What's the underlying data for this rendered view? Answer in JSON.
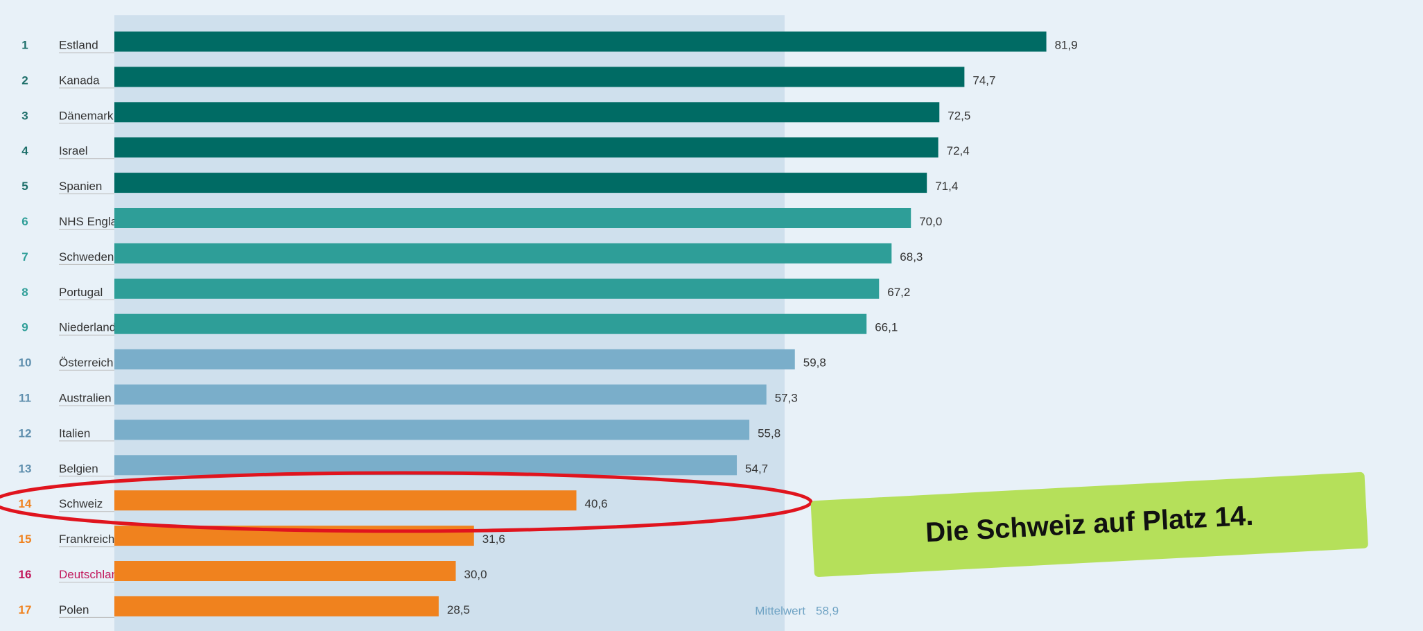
{
  "chart_data": {
    "type": "bar",
    "orientation": "horizontal",
    "ranks": [
      1,
      2,
      3,
      4,
      5,
      6,
      7,
      8,
      9,
      10,
      11,
      12,
      13,
      14,
      15,
      16,
      17
    ],
    "categories": [
      "Estland",
      "Kanada",
      "Dänemark",
      "Israel",
      "Spanien",
      "NHS England",
      "Schweden",
      "Portugal",
      "Niederlande",
      "Österreich",
      "Australien",
      "Italien",
      "Belgien",
      "Schweiz",
      "Frankreich",
      "Deutschland",
      "Polen"
    ],
    "values": [
      81.9,
      74.7,
      72.5,
      72.4,
      71.4,
      70.0,
      68.3,
      67.2,
      66.1,
      59.8,
      57.3,
      55.8,
      54.7,
      40.6,
      31.6,
      30.0,
      28.5
    ],
    "value_labels": [
      "81,9",
      "74,7",
      "72,5",
      "72,4",
      "71,4",
      "70,0",
      "68,3",
      "67,2",
      "66,1",
      "59,8",
      "57,3",
      "55,8",
      "54,7",
      "40,6",
      "31,6",
      "30,0",
      "28,5"
    ],
    "colors": [
      "#006b64",
      "#006b64",
      "#006b64",
      "#006b64",
      "#006b64",
      "#2e9e98",
      "#2e9e98",
      "#2e9e98",
      "#2e9e98",
      "#7aaeca",
      "#7aaeca",
      "#7aaeca",
      "#7aaeca",
      "#f0821e",
      "#f0821e",
      "#f0821e",
      "#f0821e"
    ],
    "rank_colors": [
      "#1d6f6a",
      "#1d6f6a",
      "#1d6f6a",
      "#1d6f6a",
      "#1d6f6a",
      "#2e9e98",
      "#2e9e98",
      "#2e9e98",
      "#2e9e98",
      "#5f8fae",
      "#5f8fae",
      "#5f8fae",
      "#5f8fae",
      "#f0821e",
      "#f0821e",
      "#c2185b",
      "#f0821e"
    ],
    "label_colors": [
      "#333",
      "#333",
      "#333",
      "#333",
      "#333",
      "#333",
      "#333",
      "#333",
      "#333",
      "#333",
      "#333",
      "#333",
      "#333",
      "#333",
      "#333",
      "#c2185b",
      "#333"
    ],
    "xlim": [
      0,
      115
    ],
    "mean": {
      "label": "Mittelwert",
      "value": 58.9,
      "value_label": "58,9"
    },
    "annotation": "Die Schweiz auf Platz 14."
  }
}
